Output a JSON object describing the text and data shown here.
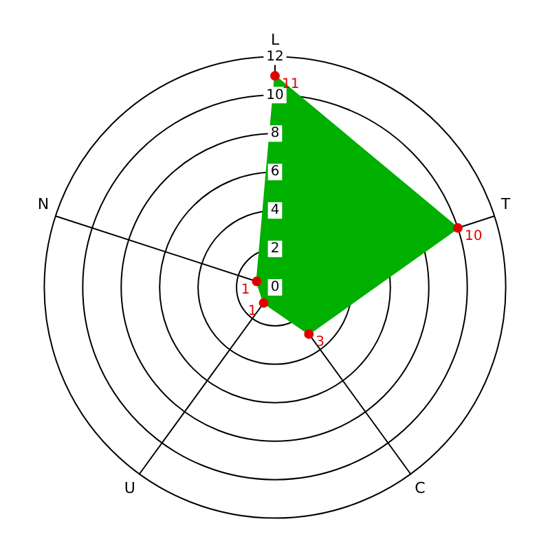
{
  "chart_data": {
    "type": "radar",
    "categories": [
      "L",
      "T",
      "C",
      "U",
      "N"
    ],
    "series": [
      {
        "color": "#00b000",
        "values": [
          11,
          10,
          3,
          1,
          1
        ]
      }
    ],
    "ylim": [
      0,
      12
    ],
    "yticks": [
      0,
      2,
      4,
      6,
      8,
      10,
      12
    ],
    "data_labels": true,
    "marker": "circle",
    "grid": true,
    "legend": false
  }
}
